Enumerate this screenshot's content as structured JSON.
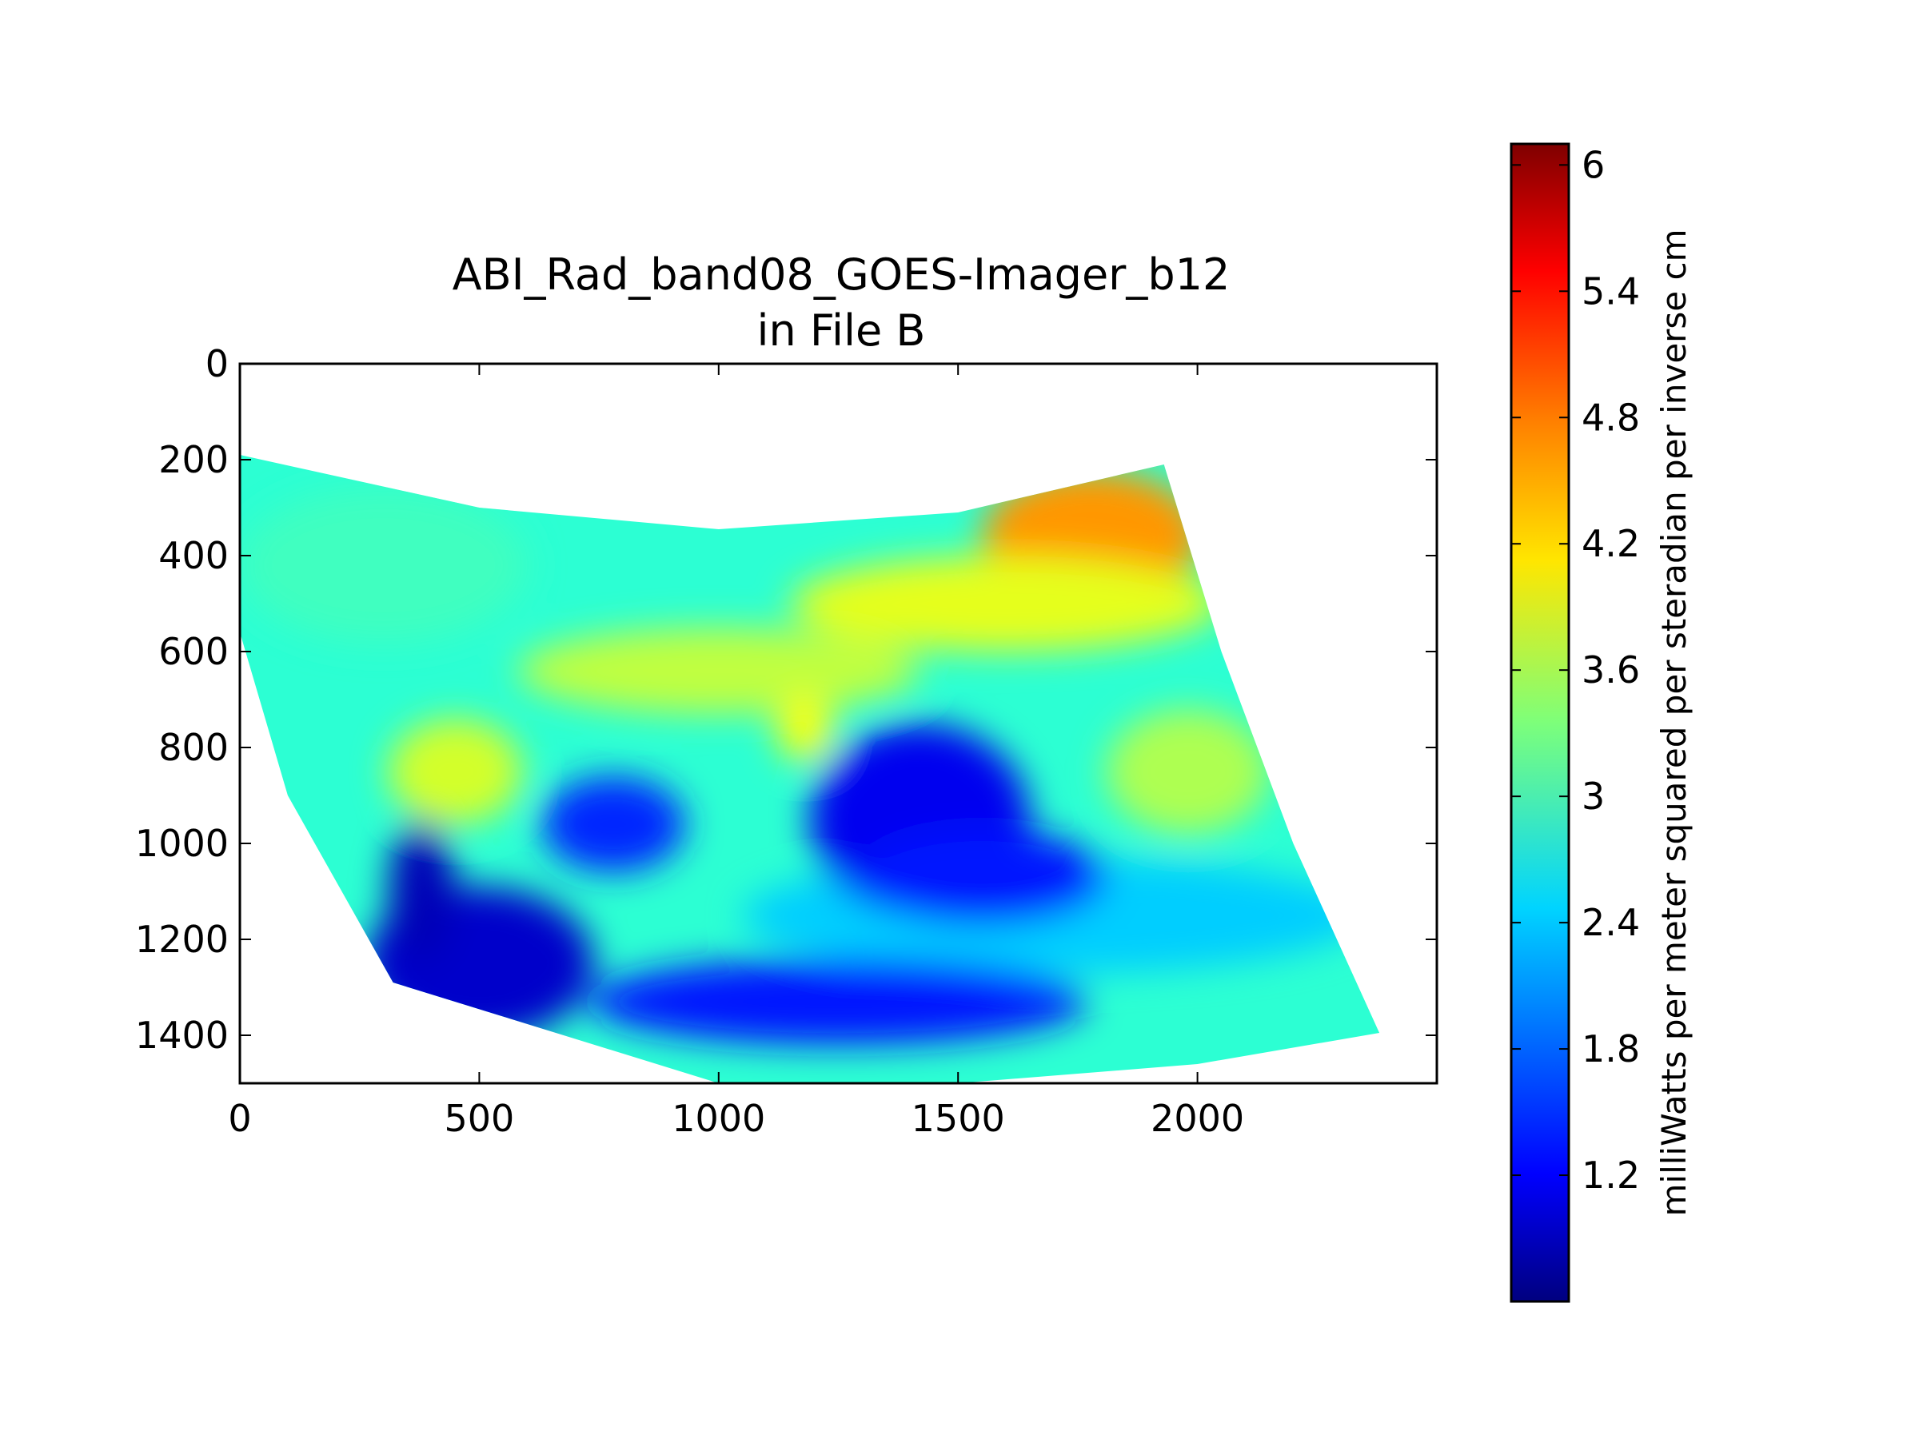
{
  "chart_data": {
    "type": "heatmap",
    "title": "ABI_Rad_band08_GOES-Imager_b12",
    "subtitle": "in File B",
    "xlabel": "",
    "ylabel": "",
    "xlim": [
      0,
      2500
    ],
    "ylim": [
      1500,
      0
    ],
    "y_inverted": true,
    "x_ticks": [
      0,
      500,
      1000,
      1500,
      2000
    ],
    "x_tick_labels": [
      "0",
      "500",
      "1000",
      "1500",
      "2000"
    ],
    "y_ticks": [
      0,
      200,
      400,
      600,
      800,
      1000,
      1200,
      1400
    ],
    "y_tick_labels": [
      "0",
      "200",
      "400",
      "600",
      "800",
      "1000",
      "1200",
      "1400"
    ],
    "grid": false,
    "colormap": "jet",
    "colorbar": {
      "label": "milliWatts per meter squared per steradian per inverse cm",
      "min": 0.6,
      "max": 6.1,
      "ticks": [
        1.2,
        1.8,
        2.4,
        3,
        3.6,
        4.2,
        4.8,
        5.4,
        6
      ],
      "tick_labels": [
        "1.2",
        "1.8",
        "2.4",
        "3",
        "3.6",
        "4.2",
        "4.8",
        "5.4",
        "6"
      ],
      "placement": "right"
    },
    "swath_outline": {
      "top_edge": [
        [
          0,
          190
        ],
        [
          500,
          300
        ],
        [
          1000,
          345
        ],
        [
          1500,
          310
        ],
        [
          1930,
          210
        ]
      ],
      "right_edge": [
        [
          1930,
          210
        ],
        [
          2050,
          600
        ],
        [
          2200,
          1000
        ],
        [
          2380,
          1395
        ]
      ],
      "bottom_edge": [
        [
          2380,
          1395
        ],
        [
          2000,
          1460
        ],
        [
          1500,
          1500
        ],
        [
          1000,
          1500
        ],
        [
          320,
          1290
        ]
      ],
      "left_edge": [
        [
          320,
          1290
        ],
        [
          100,
          900
        ],
        [
          0,
          560
        ],
        [
          0,
          190
        ]
      ]
    },
    "value_regions": [
      {
        "feature": "northeast warm area",
        "center": [
          1780,
          360
        ],
        "radius": [
          230,
          140
        ],
        "value": 4.6
      },
      {
        "feature": "yellow band",
        "center": [
          1600,
          500
        ],
        "radius": [
          450,
          100
        ],
        "value": 3.9
      },
      {
        "feature": "yellow band west",
        "center": [
          1000,
          640
        ],
        "radius": [
          420,
          90
        ],
        "value": 3.7
      },
      {
        "feature": "yellow spot",
        "center": [
          1180,
          760
        ],
        "radius": [
          60,
          70
        ],
        "value": 4.0
      },
      {
        "feature": "yellow spot west",
        "center": [
          450,
          850
        ],
        "radius": [
          140,
          110
        ],
        "value": 3.8
      },
      {
        "feature": "east green patch",
        "center": [
          1980,
          850
        ],
        "radius": [
          170,
          130
        ],
        "value": 3.6
      },
      {
        "feature": "north-west cyan",
        "center": [
          300,
          420
        ],
        "radius": [
          300,
          160
        ],
        "value": 3.0
      },
      {
        "feature": "south cyan band",
        "center": [
          1700,
          1150
        ],
        "radius": [
          650,
          120
        ],
        "value": 2.4
      },
      {
        "feature": "cyclone core",
        "center": [
          1420,
          950
        ],
        "radius": [
          230,
          200
        ],
        "value": 1.2
      },
      {
        "feature": "cyclone outer cloud",
        "center": [
          1550,
          1070
        ],
        "radius": [
          260,
          100
        ],
        "value": 1.4
      },
      {
        "feature": "spiral band",
        "center": [
          1250,
          1330
        ],
        "radius": [
          520,
          90
        ],
        "value": 1.4
      },
      {
        "feature": "western rain band",
        "center": [
          780,
          960
        ],
        "radius": [
          150,
          100
        ],
        "value": 1.5
      },
      {
        "feature": "south-west dark area",
        "center": [
          500,
          1250
        ],
        "radius": [
          240,
          160
        ],
        "value": 1.0
      },
      {
        "feature": "south-west dark streak",
        "center": [
          380,
          1100
        ],
        "radius": [
          70,
          150
        ],
        "value": 0.9
      }
    ]
  }
}
